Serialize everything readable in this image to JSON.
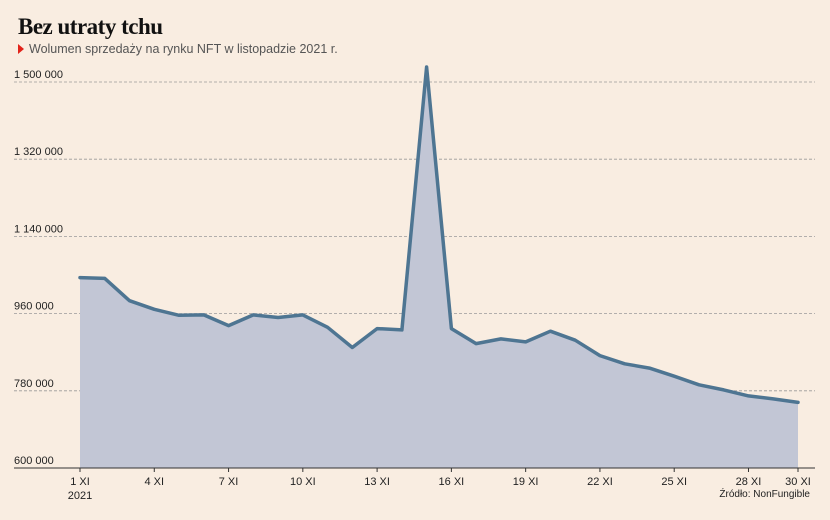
{
  "header": {
    "title": "Bez utraty tchu",
    "subtitle": "Wolumen sprzedaży na rynku NFT w listopadzie 2021 r."
  },
  "footer": {
    "source": "Źródło: NonFungible"
  },
  "colors": {
    "line": "#4e7592",
    "area": "#c2c6d5",
    "background": "#f9ede1",
    "grid": "#9a9a9a",
    "marker": "#e2231a"
  },
  "chart_data": {
    "type": "area",
    "title": "Bez utraty tchu",
    "subtitle": "Wolumen sprzedaży na rynku NFT w listopadzie 2021 r.",
    "xlabel": "",
    "ylabel": "",
    "ylim": [
      600000,
      1500000
    ],
    "grid": true,
    "yticks": [
      600000,
      780000,
      960000,
      1140000,
      1320000,
      1500000
    ],
    "ytick_labels": [
      "600 000",
      "780 000",
      "960 000",
      "1 140 000",
      "1 320 000",
      "1 500 000"
    ],
    "x": [
      1,
      2,
      3,
      4,
      5,
      6,
      7,
      8,
      9,
      10,
      11,
      12,
      13,
      14,
      15,
      16,
      17,
      18,
      19,
      20,
      21,
      22,
      23,
      24,
      25,
      26,
      27,
      28,
      29,
      30
    ],
    "xticks": [
      1,
      4,
      7,
      10,
      13,
      16,
      19,
      22,
      25,
      28,
      30
    ],
    "xtick_labels": [
      "1 XI",
      "4 XI",
      "7 XI",
      "10 XI",
      "13 XI",
      "16 XI",
      "19 XI",
      "22 XI",
      "25 XI",
      "28 XI",
      "30 XI"
    ],
    "xtick_sublabel": "2021",
    "series": [
      {
        "values": [
          1044000,
          1042000,
          990000,
          970000,
          956000,
          957000,
          932000,
          957000,
          951000,
          957000,
          928000,
          881000,
          925000,
          922000,
          1535000,
          925000,
          890000,
          901000,
          894000,
          919000,
          898000,
          862000,
          843000,
          833000,
          814000,
          794000,
          782000,
          768000,
          761000,
          753000
        ]
      }
    ]
  }
}
